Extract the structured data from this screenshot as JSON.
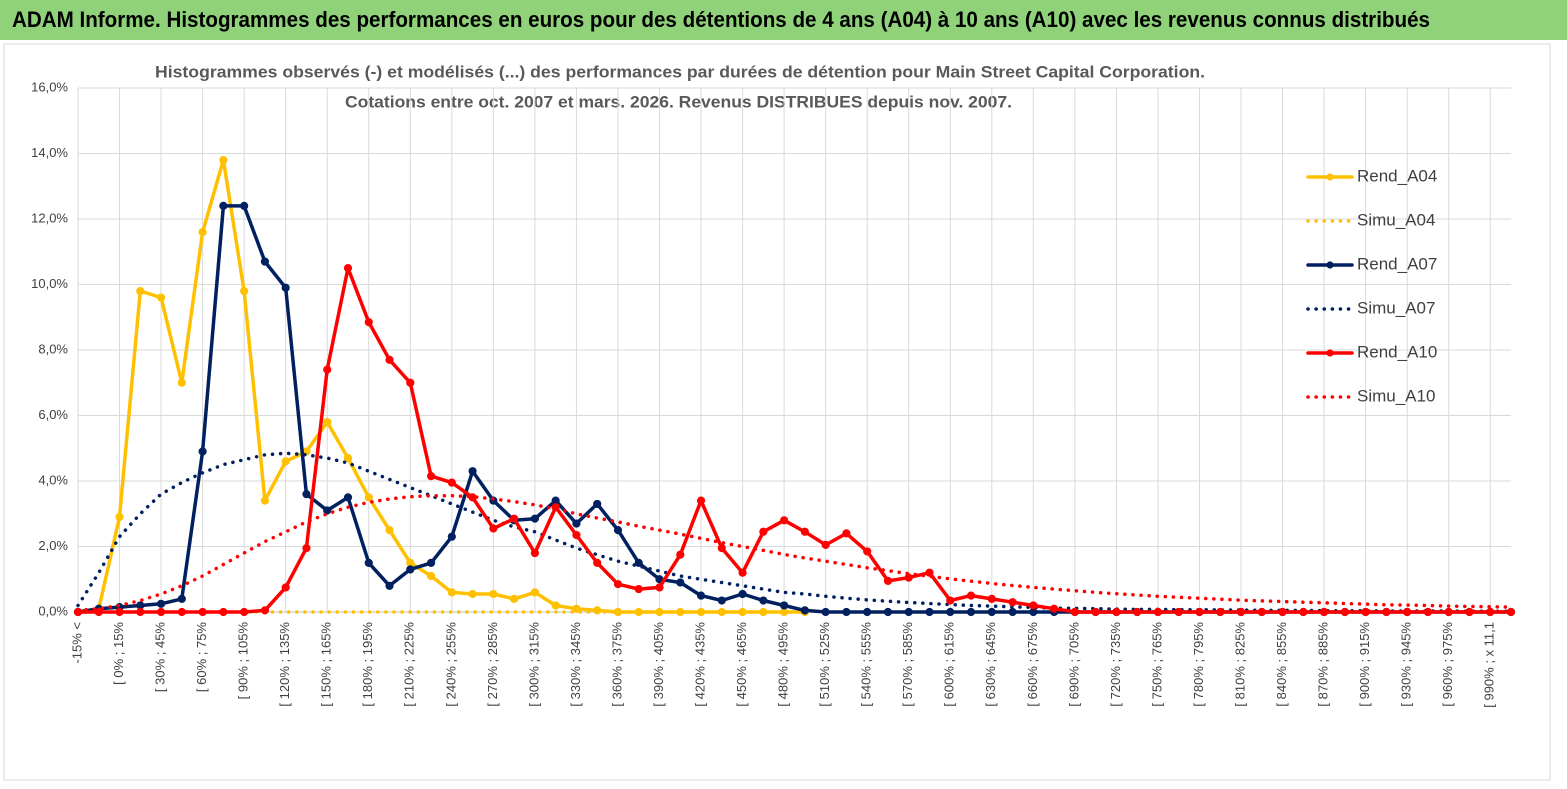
{
  "header": {
    "title": "ADAM Informe. Histogrammes des performances en euros pour des détentions de 4 ans (A04) à 10 ans (A10) avec les revenus connus distribués"
  },
  "chart_data": {
    "type": "line",
    "title": "Histogrammes observés (-) et modélisés (...)  des performances par durées de détention pour Main Street Capital Corporation.",
    "subtitle": "Cotations entre oct. 2007 et mars. 2026. Revenus DISTRIBUES depuis nov. 2007.",
    "categories": [
      "-15% <",
      null,
      "[ 0% ; 15%",
      null,
      "[ 30% ; 45%",
      null,
      "[ 60% ; 75%",
      null,
      "[ 90% ; 105%",
      null,
      "[ 120% ; 135%",
      null,
      "[ 150% ; 165%",
      null,
      "[ 180% ; 195%",
      null,
      "[ 210% ; 225%",
      null,
      "[ 240% ; 255%",
      null,
      "[ 270% ; 285%",
      null,
      "[ 300% ; 315%",
      null,
      "[ 330% ; 345%",
      null,
      "[ 360% ; 375%",
      null,
      "[ 390% ; 405%",
      null,
      "[ 420% ; 435%",
      null,
      "[ 450% ; 465%",
      null,
      "[ 480% ; 495%",
      null,
      "[ 510% ; 525%",
      null,
      "[ 540% ; 555%",
      null,
      "[ 570% ; 585%",
      null,
      "[ 600% ; 615%",
      null,
      "[ 630% ; 645%",
      null,
      "[ 660% ; 675%",
      null,
      "[ 690% ; 705%",
      null,
      "[ 720% ; 735%",
      null,
      "[ 750% ; 765%",
      null,
      "[ 780% ; 795%",
      null,
      "[ 810% ; 825%",
      null,
      "[ 840% ; 855%",
      null,
      "[ 870% ; 885%",
      null,
      "[ 900% ; 915%",
      null,
      "[ 930% ; 945%",
      null,
      "[ 960% ; 975%",
      null,
      "[ 990% ; x 11,1",
      null
    ],
    "series": [
      {
        "name": "Rend_A04",
        "color": "#ffc000",
        "style": "solid",
        "markers": true,
        "values": [
          0,
          0.1,
          2.9,
          9.8,
          9.6,
          7.0,
          11.6,
          13.8,
          9.8,
          3.4,
          4.6,
          4.9,
          5.8,
          4.7,
          3.5,
          2.5,
          1.5,
          1.1,
          0.6,
          0.55,
          0.55,
          0.4,
          0.6,
          0.2,
          0.1,
          0.05,
          0,
          0,
          0,
          0,
          0,
          0,
          0,
          0,
          0,
          0,
          null,
          null,
          null,
          null,
          null,
          null,
          null,
          null,
          null,
          null,
          null,
          null,
          null,
          null,
          null,
          null,
          null,
          null,
          null,
          null,
          null,
          null,
          null,
          null,
          null,
          null,
          null,
          null,
          null,
          null,
          null,
          null,
          null,
          null
        ]
      },
      {
        "name": "Simu_A04",
        "color": "#ffc000",
        "style": "dotted",
        "markers": false,
        "values": [
          0,
          0,
          0,
          0,
          0,
          0,
          0,
          0,
          0,
          0,
          0,
          0,
          0,
          0,
          0,
          0,
          0,
          0,
          0,
          0,
          0,
          0,
          0,
          0,
          0,
          0,
          0,
          0,
          0,
          0,
          0,
          0,
          0,
          0,
          0,
          0,
          null,
          null,
          null,
          null,
          null,
          null,
          null,
          null,
          null,
          null,
          null,
          null,
          null,
          null,
          null,
          null,
          null,
          null,
          null,
          null,
          null,
          null,
          null,
          null,
          null,
          null,
          null,
          null,
          null,
          null,
          null,
          null,
          null,
          null
        ]
      },
      {
        "name": "Rend_A07",
        "color": "#002060",
        "style": "solid",
        "markers": true,
        "values": [
          0,
          0.1,
          0.15,
          0.2,
          0.25,
          0.4,
          4.9,
          12.4,
          12.4,
          10.7,
          9.9,
          3.6,
          3.1,
          3.5,
          1.5,
          0.8,
          1.3,
          1.5,
          2.3,
          4.3,
          3.4,
          2.8,
          2.85,
          3.4,
          2.7,
          3.3,
          2.5,
          1.5,
          1.0,
          0.9,
          0.5,
          0.35,
          0.55,
          0.35,
          0.2,
          0.05,
          0,
          0,
          0,
          0,
          0,
          0,
          0,
          0,
          0,
          0,
          0,
          0,
          0,
          0,
          0,
          0,
          0,
          0,
          0,
          0,
          0,
          0,
          0,
          0,
          0,
          0,
          0,
          0,
          0,
          0,
          0,
          0,
          0,
          0
        ]
      },
      {
        "name": "Simu_A07",
        "color": "#002060",
        "style": "dotted",
        "markers": false,
        "values": [
          0.2,
          1.2,
          2.3,
          3.0,
          3.6,
          3.95,
          4.25,
          4.5,
          4.65,
          4.8,
          4.85,
          4.8,
          4.7,
          4.55,
          4.3,
          4.05,
          3.8,
          3.55,
          3.3,
          3.05,
          2.8,
          2.6,
          2.45,
          2.2,
          1.95,
          1.75,
          1.55,
          1.4,
          1.25,
          1.1,
          1.0,
          0.9,
          0.8,
          0.7,
          0.6,
          0.55,
          0.48,
          0.42,
          0.37,
          0.33,
          0.29,
          0.26,
          0.23,
          0.2,
          0.18,
          0.16,
          0.14,
          0.12,
          0.11,
          0.1,
          0.09,
          0.08,
          0.08,
          0.07,
          0.07,
          0.06,
          0.06,
          0.05,
          0.05,
          0.05,
          0.04,
          0.04,
          0.04,
          0.03,
          0.03,
          0.03,
          0.03,
          0.02,
          0.02,
          0.02
        ]
      },
      {
        "name": "Rend_A10",
        "color": "#ff0000",
        "style": "solid",
        "markers": true,
        "values": [
          0,
          0,
          0,
          0,
          0,
          0,
          0,
          0,
          0,
          0.05,
          0.75,
          1.95,
          7.4,
          10.5,
          8.85,
          7.7,
          7.0,
          4.15,
          3.95,
          3.5,
          2.55,
          2.85,
          1.8,
          3.2,
          2.35,
          1.5,
          0.85,
          0.7,
          0.75,
          1.75,
          3.4,
          1.95,
          1.2,
          2.45,
          2.8,
          2.45,
          2.05,
          2.4,
          1.85,
          0.95,
          1.05,
          1.2,
          0.35,
          0.5,
          0.4,
          0.3,
          0.2,
          0.1,
          0,
          0,
          0,
          0,
          0,
          0,
          0,
          0,
          0,
          0,
          0,
          0,
          0,
          0,
          0,
          0,
          0,
          0,
          0,
          0,
          0,
          0
        ]
      },
      {
        "name": "Simu_A10",
        "color": "#ff0000",
        "style": "dotted",
        "markers": false,
        "values": [
          0.05,
          0.1,
          0.2,
          0.35,
          0.55,
          0.8,
          1.1,
          1.45,
          1.8,
          2.15,
          2.45,
          2.75,
          3.0,
          3.2,
          3.35,
          3.45,
          3.52,
          3.55,
          3.55,
          3.52,
          3.45,
          3.37,
          3.27,
          3.15,
          3.0,
          2.87,
          2.75,
          2.62,
          2.5,
          2.38,
          2.25,
          2.12,
          2.0,
          1.88,
          1.76,
          1.65,
          1.55,
          1.45,
          1.35,
          1.26,
          1.17,
          1.09,
          1.01,
          0.94,
          0.87,
          0.81,
          0.75,
          0.7,
          0.65,
          0.6,
          0.56,
          0.52,
          0.48,
          0.45,
          0.42,
          0.39,
          0.36,
          0.34,
          0.32,
          0.3,
          0.28,
          0.26,
          0.24,
          0.22,
          0.21,
          0.2,
          0.18,
          0.17,
          0.16,
          0.15
        ]
      }
    ],
    "ylim": [
      0,
      16
    ],
    "yticks": [
      {
        "value": 0,
        "label": "0,0%"
      },
      {
        "value": 2,
        "label": "2,0%"
      },
      {
        "value": 4,
        "label": "4,0%"
      },
      {
        "value": 6,
        "label": "6,0%"
      },
      {
        "value": 8,
        "label": "8,0%"
      },
      {
        "value": 10,
        "label": "10,0%"
      },
      {
        "value": 12,
        "label": "12,0%"
      },
      {
        "value": 14,
        "label": "14,0%"
      },
      {
        "value": 16,
        "label": "16,0%"
      }
    ],
    "grid": true,
    "xgrid": true,
    "legend": "right"
  }
}
